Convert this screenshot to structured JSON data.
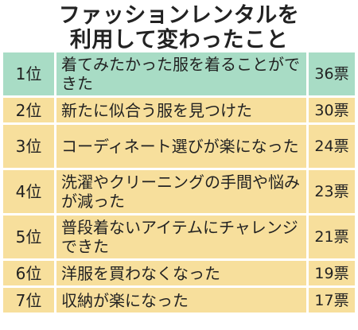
{
  "title": {
    "line1": "ファッションレンタルを",
    "line2": "利用して変わったこと"
  },
  "colors": {
    "highlight": "#a8dcc5",
    "normal": "#f7df9c",
    "text": "#222222"
  },
  "rows": [
    {
      "rank": "1位",
      "item": "着てみたかった服を着ることができた",
      "votes": "36票",
      "highlight": true
    },
    {
      "rank": "2位",
      "item": "新たに似合う服を見つけた",
      "votes": "30票",
      "highlight": false
    },
    {
      "rank": "3位",
      "item": "コーディネート選びが楽になった",
      "votes": "24票",
      "highlight": false
    },
    {
      "rank": "4位",
      "item": "洗濯やクリーニングの手間や悩みが減った",
      "votes": "23票",
      "highlight": false
    },
    {
      "rank": "5位",
      "item": "普段着ないアイテムにチャレンジできた",
      "votes": "21票",
      "highlight": false
    },
    {
      "rank": "6位",
      "item": "洋服を買わなくなった",
      "votes": "19票",
      "highlight": false
    },
    {
      "rank": "7位",
      "item": "収納が楽になった",
      "votes": "17票",
      "highlight": false
    }
  ]
}
